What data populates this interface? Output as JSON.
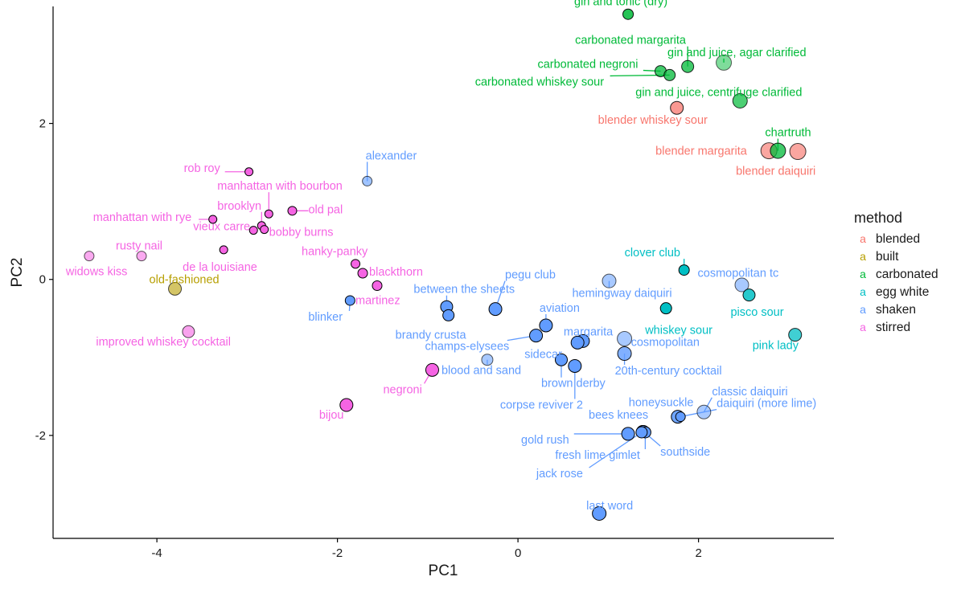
{
  "chart_data": {
    "type": "scatter",
    "title": "",
    "xlabel": "PC1",
    "ylabel": "PC2",
    "xlim": [
      -5.15,
      3.5
    ],
    "ylim": [
      -3.32,
      3.5
    ],
    "x_ticks": [
      -4,
      -2,
      0,
      2
    ],
    "y_ticks": [
      -2,
      0,
      2
    ],
    "grid": false,
    "legend": {
      "title": "method",
      "placement": "right",
      "entries": [
        {
          "name": "blended",
          "color": "#F8766D"
        },
        {
          "name": "built",
          "color": "#B79F00"
        },
        {
          "name": "carbonated",
          "color": "#00BA38"
        },
        {
          "name": "egg white",
          "color": "#00BFC4"
        },
        {
          "name": "shaken",
          "color": "#619CFF"
        },
        {
          "name": "stirred",
          "color": "#F564E3"
        }
      ]
    },
    "points": [
      {
        "name": "gin and tonic (dry)",
        "method": "carbonated",
        "x": 1.22,
        "y": 3.4,
        "size": 6.5,
        "alpha": 0.85
      },
      {
        "name": "carbonated margarita",
        "method": "carbonated",
        "x": 1.88,
        "y": 2.73,
        "size": 7.5,
        "alpha": 0.75
      },
      {
        "name": "gin and juice, agar clarified",
        "method": "carbonated",
        "x": 2.28,
        "y": 2.78,
        "size": 9.5,
        "alpha": 0.5
      },
      {
        "name": "carbonated negroni",
        "method": "carbonated",
        "x": 1.58,
        "y": 2.67,
        "size": 7,
        "alpha": 0.75
      },
      {
        "name": "carbonated whiskey sour",
        "method": "carbonated",
        "x": 1.68,
        "y": 2.62,
        "size": 7,
        "alpha": 0.75
      },
      {
        "name": "gin and juice, centrifuge clarified",
        "method": "carbonated",
        "x": 2.46,
        "y": 2.29,
        "size": 9,
        "alpha": 0.7
      },
      {
        "name": "blender whiskey sour",
        "method": "blended",
        "x": 1.76,
        "y": 2.2,
        "size": 8,
        "alpha": 0.75
      },
      {
        "name": "chartruth",
        "method": "carbonated",
        "x": 2.88,
        "y": 1.65,
        "size": 9.5,
        "alpha": 0.75
      },
      {
        "name": "blender margarita",
        "method": "blended",
        "x": 2.78,
        "y": 1.65,
        "size": 10,
        "alpha": 0.65
      },
      {
        "name": "blender daiquiri",
        "method": "blended",
        "x": 3.1,
        "y": 1.64,
        "size": 10,
        "alpha": 0.65
      },
      {
        "name": "rob roy",
        "method": "stirred",
        "x": -2.98,
        "y": 1.38,
        "size": 5,
        "alpha": 1
      },
      {
        "name": "alexander",
        "method": "shaken",
        "x": -1.67,
        "y": 1.26,
        "size": 6,
        "alpha": 0.6
      },
      {
        "name": "manhattan with bourbon",
        "method": "stirred",
        "x": -2.76,
        "y": 0.84,
        "size": 5,
        "alpha": 1
      },
      {
        "name": "old pal",
        "method": "stirred",
        "x": -2.5,
        "y": 0.88,
        "size": 5.5,
        "alpha": 1
      },
      {
        "name": "manhattan with rye",
        "method": "stirred",
        "x": -3.38,
        "y": 0.77,
        "size": 5,
        "alpha": 1
      },
      {
        "name": "brooklyn",
        "method": "stirred",
        "x": -2.84,
        "y": 0.69,
        "size": 5,
        "alpha": 1
      },
      {
        "name": "bobby burns",
        "method": "stirred",
        "x": -2.81,
        "y": 0.64,
        "size": 5,
        "alpha": 1
      },
      {
        "name": "vieux carre",
        "method": "stirred",
        "x": -2.93,
        "y": 0.63,
        "size": 5,
        "alpha": 1
      },
      {
        "name": "de la louisiane",
        "method": "stirred",
        "x": -3.26,
        "y": 0.38,
        "size": 5,
        "alpha": 1
      },
      {
        "name": "rusty nail",
        "method": "stirred",
        "x": -4.17,
        "y": 0.3,
        "size": 6,
        "alpha": 0.55
      },
      {
        "name": "widows kiss",
        "method": "stirred",
        "x": -4.75,
        "y": 0.3,
        "size": 6,
        "alpha": 0.55
      },
      {
        "name": "hanky-panky",
        "method": "stirred",
        "x": -1.8,
        "y": 0.2,
        "size": 5.5,
        "alpha": 1
      },
      {
        "name": "blackthorn",
        "method": "stirred",
        "x": -1.72,
        "y": 0.08,
        "size": 6,
        "alpha": 1
      },
      {
        "name": "martinez",
        "method": "stirred",
        "x": -1.56,
        "y": -0.08,
        "size": 6,
        "alpha": 1
      },
      {
        "name": "old-fashioned",
        "method": "built",
        "x": -3.8,
        "y": -0.12,
        "size": 8,
        "alpha": 0.6
      },
      {
        "name": "blinker",
        "method": "shaken",
        "x": -1.86,
        "y": -0.27,
        "size": 6,
        "alpha": 1
      },
      {
        "name": "improved whiskey cocktail",
        "method": "stirred",
        "x": -3.65,
        "y": -0.67,
        "size": 7.5,
        "alpha": 0.6
      },
      {
        "name": "negroni",
        "method": "stirred",
        "x": -0.95,
        "y": -1.16,
        "size": 8,
        "alpha": 1
      },
      {
        "name": "bijou",
        "method": "stirred",
        "x": -1.9,
        "y": -1.61,
        "size": 8,
        "alpha": 1
      },
      {
        "name": "pegu club",
        "method": "shaken",
        "x": -0.25,
        "y": -0.38,
        "size": 8,
        "alpha": 1
      },
      {
        "name": "between the sheets",
        "method": "shaken",
        "x": -0.79,
        "y": -0.35,
        "size": 7.5,
        "alpha": 1
      },
      {
        "name": "brandy crusta",
        "method": "shaken",
        "x": -0.77,
        "y": -0.46,
        "size": 7,
        "alpha": 1
      },
      {
        "name": "aviation",
        "method": "shaken",
        "x": 0.31,
        "y": -0.59,
        "size": 8,
        "alpha": 1
      },
      {
        "name": "champs-elysees",
        "method": "shaken",
        "x": 0.2,
        "y": -0.72,
        "size": 8,
        "alpha": 1
      },
      {
        "name": "margarita",
        "method": "shaken",
        "x": 0.72,
        "y": -0.79,
        "size": 8,
        "alpha": 1
      },
      {
        "name": "sidecar",
        "method": "shaken",
        "x": 0.66,
        "y": -0.81,
        "size": 8,
        "alpha": 1
      },
      {
        "name": "hemingway daiquiri",
        "method": "shaken",
        "x": 1.01,
        "y": -0.02,
        "size": 8.5,
        "alpha": 0.55
      },
      {
        "name": "cosmopolitan",
        "method": "shaken",
        "x": 1.18,
        "y": -0.76,
        "size": 9,
        "alpha": 0.55
      },
      {
        "name": "20th-century cocktail",
        "method": "shaken",
        "x": 1.18,
        "y": -0.95,
        "size": 8.5,
        "alpha": 0.8
      },
      {
        "name": "blood and sand",
        "method": "shaken",
        "x": -0.34,
        "y": -1.03,
        "size": 7,
        "alpha": 0.55
      },
      {
        "name": "brown derby",
        "method": "shaken",
        "x": 0.48,
        "y": -1.03,
        "size": 7.5,
        "alpha": 1
      },
      {
        "name": "corpse reviver 2",
        "method": "shaken",
        "x": 0.63,
        "y": -1.11,
        "size": 8,
        "alpha": 1
      },
      {
        "name": "clover club",
        "method": "egg white",
        "x": 1.84,
        "y": 0.12,
        "size": 6.5,
        "alpha": 1
      },
      {
        "name": "cosmopolitan tc",
        "method": "shaken",
        "x": 2.48,
        "y": -0.07,
        "size": 8.5,
        "alpha": 0.55
      },
      {
        "name": "pisco sour",
        "method": "egg white",
        "x": 2.56,
        "y": -0.2,
        "size": 7.5,
        "alpha": 0.85
      },
      {
        "name": "whiskey sour",
        "method": "egg white",
        "x": 1.64,
        "y": -0.37,
        "size": 7,
        "alpha": 1
      },
      {
        "name": "pink lady",
        "method": "egg white",
        "x": 3.07,
        "y": -0.71,
        "size": 8,
        "alpha": 0.75
      },
      {
        "name": "classic daiquiri",
        "method": "shaken",
        "x": 2.06,
        "y": -1.7,
        "size": 8.5,
        "alpha": 0.55
      },
      {
        "name": "honeysuckle",
        "method": "shaken",
        "x": 1.77,
        "y": -1.76,
        "size": 8,
        "alpha": 0.9
      },
      {
        "name": "daiquiri (more lime)",
        "method": "shaken",
        "x": 1.8,
        "y": -1.76,
        "size": 6,
        "alpha": 1
      },
      {
        "name": "bees knees",
        "method": "shaken",
        "x": 1.38,
        "y": -1.95,
        "size": 7.5,
        "alpha": 1
      },
      {
        "name": "southside",
        "method": "shaken",
        "x": 1.39,
        "y": -1.95,
        "size": 7.5,
        "alpha": 1
      },
      {
        "name": "gold rush",
        "method": "shaken",
        "x": 1.22,
        "y": -1.98,
        "size": 8,
        "alpha": 1
      },
      {
        "name": "fresh lime gimlet",
        "method": "shaken",
        "x": 1.41,
        "y": -1.96,
        "size": 7,
        "alpha": 1
      },
      {
        "name": "jack rose",
        "method": "shaken",
        "x": 1.37,
        "y": -1.96,
        "size": 7,
        "alpha": 1
      },
      {
        "name": "last word",
        "method": "shaken",
        "x": 0.9,
        "y": -3.0,
        "size": 8.5,
        "alpha": 1
      }
    ]
  }
}
